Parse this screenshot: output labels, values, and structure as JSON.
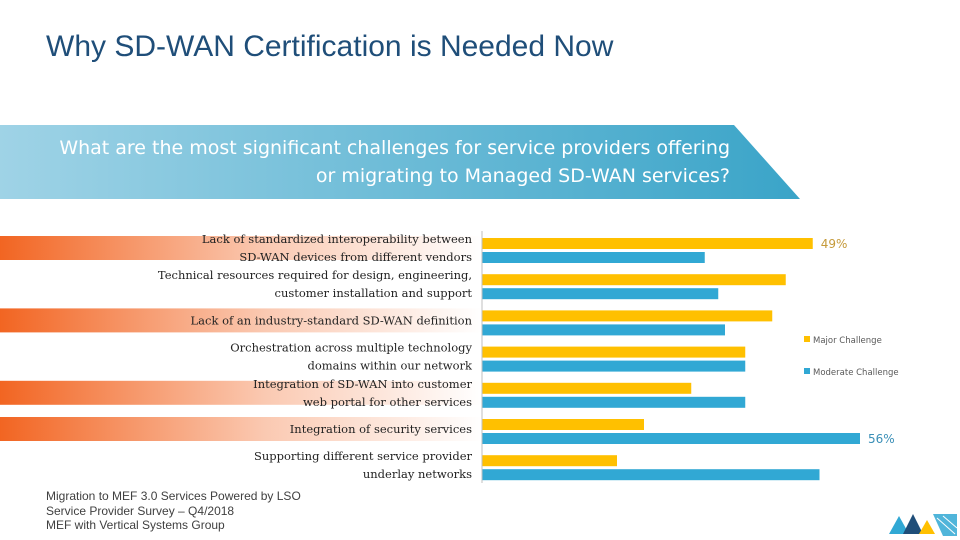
{
  "slide": {
    "title": "Why SD-WAN Certification is Needed Now",
    "question": "What are the most significant challenges for service providers offering or migrating to Managed SD-WAN services?",
    "source_lines": [
      "Migration to MEF 3.0 Services Powered by LSO",
      "Service Provider Survey – Q4/2018",
      "MEF with Vertical Systems Group"
    ]
  },
  "colors": {
    "title": "#1f4e79",
    "banner_start": "#9fd3e6",
    "banner_end": "#3aa4c8",
    "stripe": "#f26522",
    "major": "#ffc000",
    "moderate": "#31a8d4"
  },
  "logo": {
    "name": "mef-logo-icon"
  },
  "chart_data": {
    "type": "bar",
    "orientation": "horizontal",
    "categories": [
      [
        "Lack of standardized interoperability between",
        "SD-WAN devices from different vendors"
      ],
      [
        "Technical resources required for design, engineering,",
        "customer installation and support"
      ],
      [
        "Lack of an industry-standard SD-WAN definition"
      ],
      [
        "Orchestration across multiple technology",
        "domains within our network"
      ],
      [
        "Integration of SD-WAN into customer",
        "web portal for other services"
      ],
      [
        "Integration of security services"
      ],
      [
        "Supporting different service provider",
        "underlay networks"
      ]
    ],
    "series": [
      {
        "name": "Major Challenge",
        "values": [
          49,
          45,
          43,
          39,
          31,
          24,
          20
        ]
      },
      {
        "name": "Moderate Challenge",
        "values": [
          33,
          35,
          36,
          39,
          39,
          56,
          50
        ]
      }
    ],
    "data_labels": [
      {
        "series": 0,
        "index": 0,
        "text": "49%"
      },
      {
        "series": 1,
        "index": 5,
        "text": "56%"
      }
    ],
    "striped_rows": [
      0,
      2,
      4,
      5
    ],
    "xlim": [
      0,
      56
    ],
    "legend_position": "right"
  }
}
